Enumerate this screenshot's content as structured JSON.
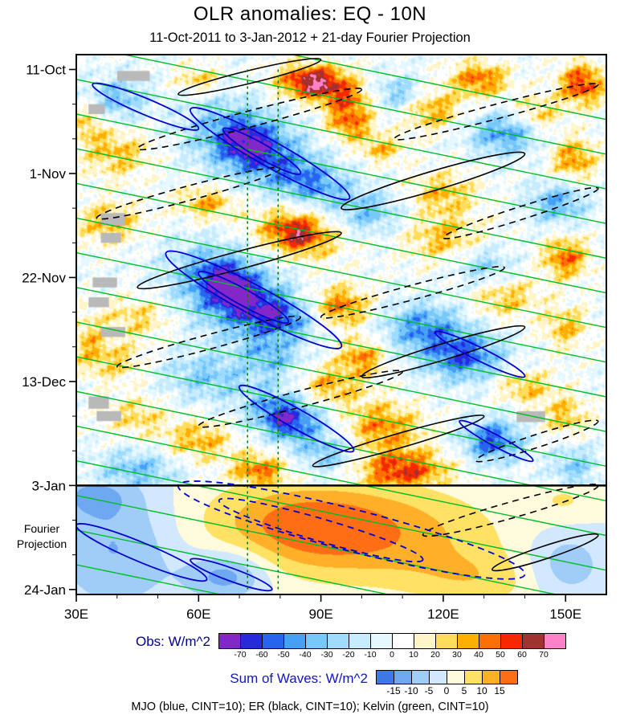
{
  "title": "OLR anomalies: EQ - 10N",
  "subtitle": "11-Oct-2011 to 3-Jan-2012 + 21-day Fourier Projection",
  "caption": "MJO (blue, CINT=10); ER (black, CINT=10); Kelvin (green, CINT=10)",
  "axes": {
    "x_ticks": [
      {
        "lon": 30,
        "label": "30E"
      },
      {
        "lon": 60,
        "label": "60E"
      },
      {
        "lon": 90,
        "label": "90E"
      },
      {
        "lon": 120,
        "label": "120E"
      },
      {
        "lon": 150,
        "label": "150E"
      }
    ],
    "x_minor_step": 10,
    "y_ticks": [
      {
        "day": 0,
        "label": "11-Oct"
      },
      {
        "day": 21,
        "label": "1-Nov"
      },
      {
        "day": 42,
        "label": "22-Nov"
      },
      {
        "day": 63,
        "label": "13-Dec"
      },
      {
        "day": 84,
        "label": "3-Jan"
      },
      {
        "day": 105,
        "label": "24-Jan"
      }
    ],
    "y_minor_step": 7,
    "x_range": [
      30,
      160
    ],
    "t_range": [
      -3,
      106
    ],
    "projection_label_lines": [
      "Fourier",
      "Projection"
    ],
    "projection_label_day": 93.5
  },
  "chart_data": {
    "type": "heatmap",
    "x_axis": "longitude (deg E)",
    "y_axis": "time, 11-Oct-2011 (day 0) to 24-Jan-2012 (day 105), downward",
    "separator_day": 84,
    "obs": {
      "label": "Obs: W/m^2",
      "units": "W/m^2",
      "levels": [
        -70,
        -60,
        -50,
        -40,
        -30,
        -20,
        -10,
        0,
        10,
        20,
        30,
        40,
        50,
        60,
        70
      ],
      "colors": [
        "#8228C8",
        "#2828DC",
        "#2864F0",
        "#46A0F5",
        "#78C8FA",
        "#A0DCFF",
        "#C8ECFF",
        "#E6F8FF",
        "#FFFFFF",
        "#FFF5C8",
        "#FFDC5A",
        "#FFAF00",
        "#FF6E00",
        "#F52800",
        "#A03232",
        "#FF82C8"
      ],
      "speckle_amp": 13,
      "features_format": [
        "lon_center",
        "day_center",
        "amplitude_wm2",
        "sigma_lon",
        "sigma_day",
        "tilt_day_per_deg"
      ],
      "features": [
        [
          88,
          2.5,
          70,
          6,
          2.5,
          0
        ],
        [
          97,
          6,
          35,
          5,
          2.5,
          0
        ],
        [
          129,
          2,
          45,
          5,
          2.5,
          0
        ],
        [
          154,
          3,
          55,
          4,
          3,
          0
        ],
        [
          143,
          9,
          30,
          4,
          2.5,
          0
        ],
        [
          117,
          8,
          38,
          5,
          3,
          0
        ],
        [
          60,
          2,
          28,
          4,
          2,
          0
        ],
        [
          40,
          6,
          -35,
          5,
          3,
          0
        ],
        [
          109,
          5,
          -35,
          5,
          2.5,
          0
        ],
        [
          33,
          11,
          25,
          3,
          3,
          0
        ],
        [
          72,
          15,
          -62,
          9,
          5.5,
          0.5
        ],
        [
          72,
          15,
          -25,
          4,
          2.5,
          0.5
        ],
        [
          88,
          23,
          -40,
          7,
          3.5,
          0.5
        ],
        [
          97,
          11,
          42,
          4,
          2.5,
          0
        ],
        [
          135,
          13,
          -45,
          6,
          3,
          0
        ],
        [
          152,
          18,
          40,
          4,
          3,
          0
        ],
        [
          40,
          17,
          30,
          6,
          3.5,
          0
        ],
        [
          105,
          16,
          30,
          4,
          2,
          0
        ],
        [
          62,
          27,
          35,
          5,
          2.5,
          0
        ],
        [
          120,
          25,
          30,
          6,
          3,
          0
        ],
        [
          148,
          27,
          -40,
          5,
          3,
          0
        ],
        [
          102,
          29,
          -32,
          6,
          3,
          0
        ],
        [
          38,
          31,
          32,
          6,
          3,
          0
        ],
        [
          84,
          33,
          55,
          7,
          3.5,
          0.3
        ],
        [
          84,
          33,
          12,
          3,
          2,
          0.3
        ],
        [
          120,
          34,
          30,
          7,
          3.5,
          0
        ],
        [
          150,
          38,
          45,
          4,
          3,
          0
        ],
        [
          130,
          40,
          -30,
          5,
          3,
          0
        ],
        [
          68,
          45,
          -65,
          9,
          6,
          0.5
        ],
        [
          67,
          43,
          -28,
          4,
          3,
          0.5
        ],
        [
          80,
          50,
          -40,
          6,
          3,
          0.5
        ],
        [
          95,
          48,
          45,
          5,
          3,
          0
        ],
        [
          45,
          50,
          25,
          6,
          3,
          0
        ],
        [
          115,
          52,
          -45,
          7,
          3.5,
          0
        ],
        [
          135,
          46,
          30,
          6,
          3,
          0
        ],
        [
          33,
          55,
          25,
          3,
          4,
          0
        ],
        [
          150,
          52,
          30,
          4,
          3,
          0
        ],
        [
          125,
          58,
          -55,
          7,
          3.5,
          0
        ],
        [
          100,
          58,
          40,
          4,
          2.5,
          0
        ],
        [
          92,
          64,
          35,
          6,
          3,
          0
        ],
        [
          62,
          62,
          -30,
          8,
          3.5,
          0
        ],
        [
          40,
          59,
          25,
          5,
          3,
          0
        ],
        [
          140,
          64,
          30,
          5,
          2.5,
          0
        ],
        [
          78,
          58,
          -30,
          5,
          3,
          0.4
        ],
        [
          82,
          70,
          -52,
          7,
          4,
          0.5
        ],
        [
          81,
          71,
          -22,
          3.5,
          2.5,
          0.5
        ],
        [
          105,
          72,
          40,
          7,
          3.5,
          0
        ],
        [
          132,
          75,
          -58,
          5,
          3,
          0
        ],
        [
          150,
          70,
          30,
          4,
          3,
          0
        ],
        [
          60,
          75,
          33,
          6,
          3,
          0
        ],
        [
          45,
          70,
          25,
          5,
          3,
          0
        ],
        [
          110,
          81,
          55,
          8,
          3,
          0
        ],
        [
          75,
          81,
          45,
          5,
          2.5,
          0
        ],
        [
          45,
          81,
          -35,
          7,
          3,
          0
        ],
        [
          152,
          80,
          -30,
          4,
          3,
          0
        ],
        [
          92,
          78,
          -30,
          5,
          2.5,
          0
        ]
      ]
    },
    "projection": {
      "label": "Sum of Waves: W/m^2",
      "units": "W/m^2",
      "levels": [
        -15,
        -10,
        -5,
        0,
        5,
        10,
        15
      ],
      "colors": [
        "#3C78E6",
        "#6EA8F0",
        "#A0CCF8",
        "#D2E8FF",
        "#FFFBDC",
        "#FFE164",
        "#FFAF28",
        "#FF6E14"
      ],
      "features_format": [
        "lon_center",
        "day_center",
        "amplitude_wm2",
        "sigma_lon",
        "sigma_day",
        "tilt_day_per_deg"
      ],
      "features": [
        [
          95,
          93,
          17,
          24,
          7,
          0.35
        ],
        [
          88,
          92,
          6,
          10,
          4,
          0.35
        ],
        [
          40,
          96,
          -11,
          11,
          9,
          0
        ],
        [
          67,
          102,
          -14,
          7,
          3.5,
          0
        ],
        [
          150,
          100,
          -9,
          7,
          5,
          0
        ],
        [
          34,
          86,
          -8,
          7,
          3,
          0
        ],
        [
          150,
          87,
          5,
          6,
          3,
          0
        ],
        [
          128,
          103,
          7,
          12,
          4,
          0.3
        ]
      ]
    },
    "missing_blocks_format": [
      "lon",
      "day",
      "width_deg",
      "height_days"
    ],
    "missing_blocks": [
      [
        40,
        0.3,
        8,
        2
      ],
      [
        33,
        7,
        4,
        2
      ],
      [
        36,
        29,
        6,
        2.5
      ],
      [
        36,
        33,
        5,
        2
      ],
      [
        34,
        42,
        6,
        2
      ],
      [
        33,
        46,
        5,
        2
      ],
      [
        36,
        52,
        6,
        2
      ],
      [
        33,
        66,
        5,
        2.5
      ],
      [
        35,
        69,
        6,
        2
      ],
      [
        138,
        69,
        7,
        2.2
      ]
    ],
    "overlays": {
      "kelvin": {
        "name": "Kelvin wave contours",
        "color": "#00BE28",
        "cint": 10,
        "slope_day_per_deg": 0.17,
        "span_lon": [
          30,
          160
        ],
        "start_days": [
          -12,
          -5,
          2,
          9,
          16,
          23,
          30,
          37,
          44,
          51,
          58,
          65,
          72,
          79,
          86,
          93,
          100
        ]
      },
      "er": {
        "name": "ER wave contours",
        "color": "#000000",
        "cint": 10,
        "ellipse_format": [
          "lon1",
          "day1",
          "lon2",
          "day2",
          "halfwidth_px",
          "dashed"
        ],
        "ellipses": [
          [
            55,
            5,
            90,
            -2,
            8,
            0
          ],
          [
            45,
            16,
            100,
            4,
            10,
            1
          ],
          [
            108,
            14,
            158,
            3,
            9,
            1
          ],
          [
            95,
            28,
            140,
            17,
            12,
            0
          ],
          [
            35,
            30,
            80,
            20,
            9,
            1
          ],
          [
            120,
            34,
            158,
            24,
            8,
            1
          ],
          [
            45,
            44,
            95,
            33,
            11,
            0
          ],
          [
            90,
            50,
            135,
            40,
            9,
            1
          ],
          [
            100,
            62,
            140,
            52,
            10,
            0
          ],
          [
            40,
            60,
            85,
            50,
            9,
            1
          ],
          [
            60,
            72,
            110,
            61,
            10,
            1
          ],
          [
            88,
            80,
            130,
            70,
            9,
            0
          ],
          [
            128,
            79,
            158,
            71,
            8,
            1
          ],
          [
            115,
            94,
            158,
            84,
            10,
            1
          ],
          [
            132,
            101,
            158,
            94,
            8,
            0
          ]
        ]
      },
      "mjo": {
        "name": "MJO contours",
        "color": "#0000CD",
        "cint": 10,
        "ellipse_format": [
          "lon1",
          "day1",
          "lon2",
          "day2",
          "halfwidth_px",
          "dashed"
        ],
        "ellipses": [
          [
            34,
            3,
            60,
            12,
            10,
            0
          ],
          [
            58,
            8,
            97,
            26,
            16,
            0
          ],
          [
            66,
            12,
            85,
            21,
            9,
            0
          ],
          [
            52,
            37,
            95,
            56,
            18,
            0
          ],
          [
            60,
            41,
            82,
            51,
            10,
            0
          ],
          [
            70,
            64,
            98,
            77,
            12,
            0
          ],
          [
            118,
            53,
            140,
            62,
            8,
            0
          ],
          [
            124,
            71,
            142,
            79,
            7,
            0
          ],
          [
            55,
            84,
            140,
            102,
            26,
            1
          ],
          [
            65,
            87,
            115,
            99,
            14,
            1
          ],
          [
            30,
            92,
            62,
            103,
            12,
            0
          ],
          [
            58,
            99,
            78,
            105,
            8,
            0
          ]
        ]
      },
      "reference_lons": [
        72,
        79.5
      ],
      "reference_line_color": "#007800",
      "separator_color": "#000000"
    }
  }
}
